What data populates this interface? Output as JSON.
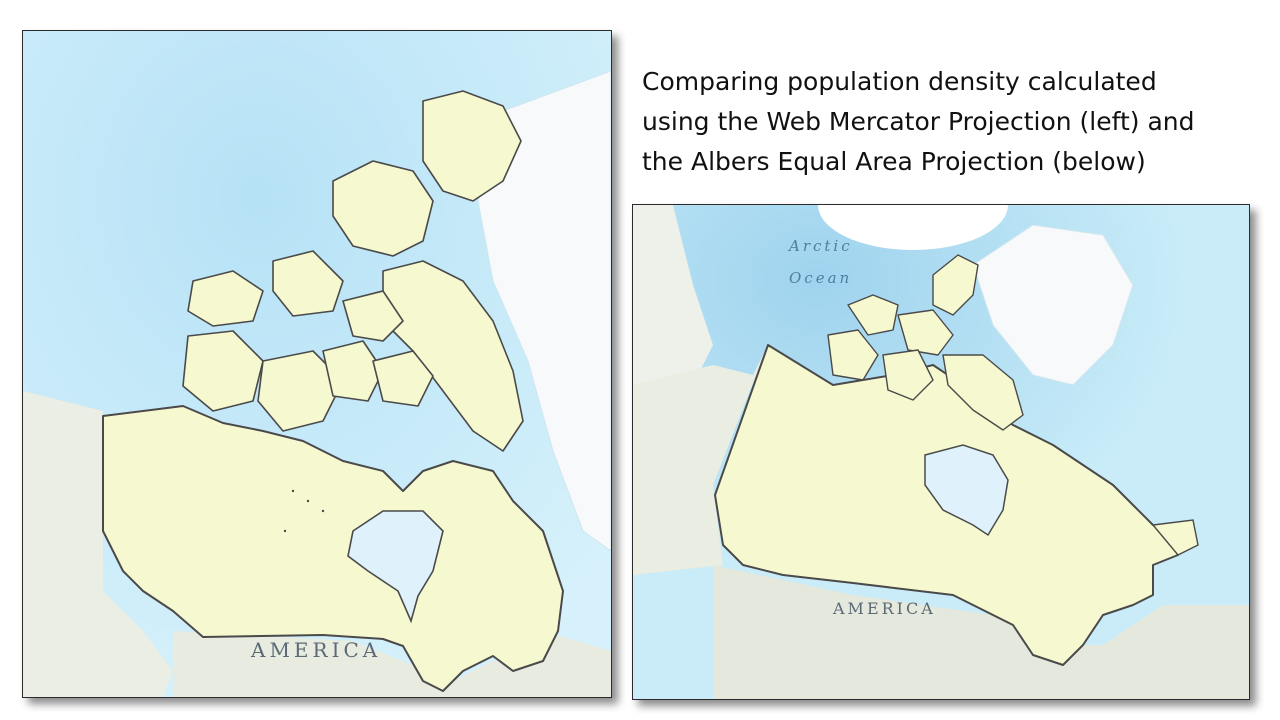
{
  "caption": {
    "lines": [
      "Comparing population density calculated",
      "using the Web Mercator Projection (left) and",
      "the Albers Equal Area Projection (below)"
    ]
  },
  "maps": {
    "left": {
      "projection": "Web Mercator",
      "labels": {
        "america": "AMERICA"
      }
    },
    "right": {
      "projection": "Albers Equal Area",
      "labels": {
        "arctic": "Arctic",
        "ocean": "Ocean",
        "america": "AMERICA"
      }
    }
  },
  "colors": {
    "ocean": "#c9ecf8",
    "ocean_deep": "#a9dcf2",
    "land_foreign": "#eef0ea",
    "greenland": "#f7f9fa",
    "canada_fill": "#f6f8cf",
    "canada_outline": "#4a4a4a",
    "lakes": "#dff2fb",
    "label_text": "#5a6a74",
    "ocean_label": "#4e7f9c"
  }
}
